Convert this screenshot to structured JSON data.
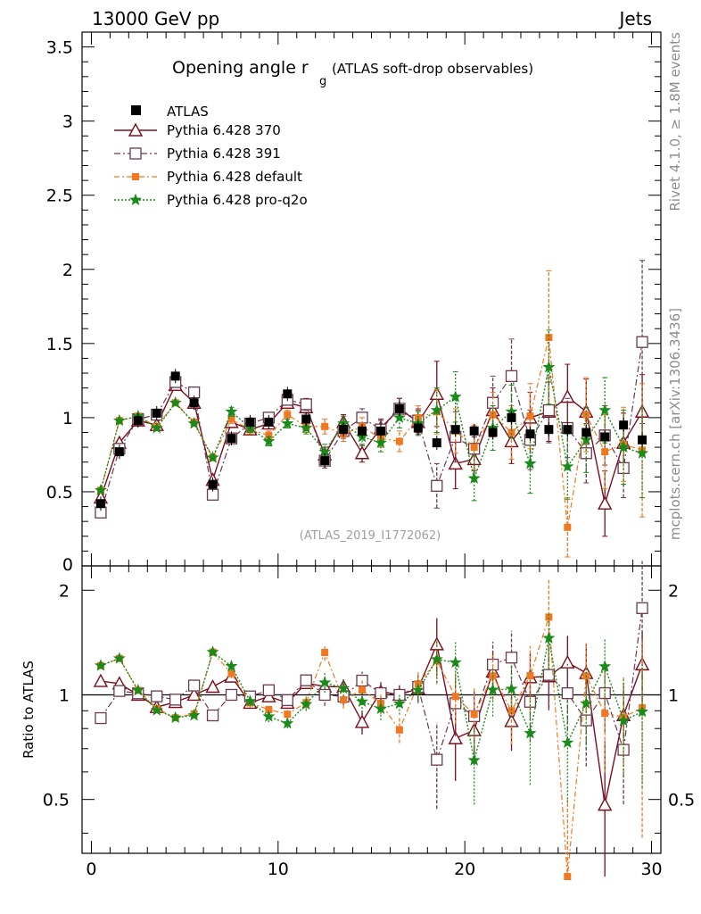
{
  "header": {
    "left": "13000 GeV pp",
    "right": "Jets"
  },
  "side_labels": {
    "rivet": "Rivet 4.1.0, ≥ 1.8M events",
    "mcplots": "mcplots.cern.ch [arXiv:1306.3436]"
  },
  "chart_data": {
    "type": "scatter",
    "title": "Opening angle r",
    "title_subscript": "g",
    "subtitle": "(ATLAS soft-drop observables)",
    "watermark": "(ATLAS_2019_I1772062)",
    "x": [
      0.5,
      1.5,
      2.5,
      3.5,
      4.5,
      5.5,
      6.5,
      7.5,
      8.5,
      9.5,
      10.5,
      11.5,
      12.5,
      13.5,
      14.5,
      15.5,
      16.5,
      17.5,
      18.5,
      19.5,
      20.5,
      21.5,
      22.5,
      23.5,
      24.5,
      25.5,
      26.5,
      27.5,
      28.5,
      29.5
    ],
    "xlim": [
      -0.5,
      30.5
    ],
    "xticks": [
      0,
      10,
      20,
      30
    ],
    "main_ylim": [
      0,
      3.6
    ],
    "main_yticks": [
      "0.5",
      "1",
      "1.5",
      "2",
      "2.5",
      "3",
      "3.5"
    ],
    "ratio_ylabel": "Ratio to ATLAS",
    "ratio_ylim": [
      0.35,
      2.35
    ],
    "ratio_yticks": [
      "0.5",
      "1",
      "2"
    ],
    "reference": {
      "name": "ATLAS",
      "values": [
        0.42,
        0.77,
        0.98,
        1.03,
        1.28,
        1.1,
        0.55,
        0.86,
        0.97,
        0.97,
        1.16,
        0.99,
        0.71,
        0.92,
        0.91,
        0.91,
        1.06,
        0.93,
        0.83,
        0.92,
        0.91,
        0.9,
        1.0,
        0.89,
        0.92,
        0.92,
        0.9,
        0.87,
        0.95,
        0.85
      ]
    },
    "series": [
      {
        "name": "Pythia 6.428 370",
        "color": "#7b0e1e",
        "values": [
          0.46,
          0.83,
          0.98,
          0.95,
          1.22,
          1.1,
          0.58,
          0.97,
          0.92,
          0.96,
          1.1,
          1.07,
          0.75,
          0.97,
          0.76,
          0.93,
          1.06,
          0.97,
          1.16,
          0.69,
          0.72,
          1.05,
          0.84,
          1.0,
          1.04,
          1.14,
          1.04,
          0.42,
          0.83,
          1.04
        ],
        "errors": [
          0.02,
          0.02,
          0.02,
          0.02,
          0.02,
          0.02,
          0.02,
          0.03,
          0.03,
          0.03,
          0.03,
          0.04,
          0.05,
          0.05,
          0.06,
          0.06,
          0.07,
          0.08,
          0.22,
          0.17,
          0.15,
          0.15,
          0.15,
          0.17,
          0.2,
          0.22,
          0.22,
          0.22,
          0.2,
          0.25
        ]
      },
      {
        "name": "Pythia 6.428 391",
        "color": "#6b3a4e",
        "values": [
          0.36,
          0.79,
          0.99,
          1.02,
          1.24,
          1.17,
          0.48,
          0.86,
          0.96,
          1.0,
          1.12,
          1.09,
          0.71,
          0.91,
          1.0,
          0.92,
          1.06,
          0.98,
          0.54,
          0.87,
          0.79,
          1.1,
          1.28,
          0.85,
          1.05,
          0.93,
          0.76,
          0.88,
          0.66,
          1.51
        ],
        "errors": [
          0.02,
          0.02,
          0.02,
          0.02,
          0.02,
          0.02,
          0.02,
          0.03,
          0.03,
          0.03,
          0.03,
          0.04,
          0.05,
          0.05,
          0.06,
          0.06,
          0.07,
          0.08,
          0.15,
          0.17,
          0.15,
          0.18,
          0.25,
          0.2,
          0.22,
          0.2,
          0.2,
          0.2,
          0.2,
          0.55
        ]
      },
      {
        "name": "Pythia 6.428 default",
        "color": "#f07820",
        "values": [
          0.51,
          0.98,
          1.01,
          0.94,
          1.1,
          0.97,
          0.73,
          0.99,
          0.92,
          0.88,
          1.02,
          0.94,
          0.94,
          0.89,
          0.94,
          0.86,
          0.84,
          1.0,
          1.04,
          0.91,
          0.8,
          1.02,
          0.9,
          1.01,
          1.54,
          0.26,
          1.02,
          0.77,
          0.82,
          0.78
        ],
        "errors": [
          0.02,
          0.02,
          0.02,
          0.02,
          0.02,
          0.02,
          0.02,
          0.03,
          0.03,
          0.03,
          0.03,
          0.04,
          0.05,
          0.05,
          0.06,
          0.06,
          0.07,
          0.08,
          0.15,
          0.15,
          0.15,
          0.15,
          0.18,
          0.22,
          0.45,
          0.2,
          0.25,
          0.25,
          0.25,
          0.45
        ]
      },
      {
        "name": "Pythia 6.428 pro-q2o",
        "color": "#1a8a1a",
        "values": [
          0.51,
          0.98,
          1.01,
          0.93,
          1.1,
          0.96,
          0.73,
          1.04,
          0.93,
          0.84,
          0.96,
          0.93,
          0.77,
          0.96,
          0.87,
          0.83,
          1.0,
          0.96,
          1.05,
          1.14,
          0.59,
          0.93,
          1.04,
          0.69,
          1.34,
          0.67,
          0.85,
          1.05,
          0.8,
          0.76
        ],
        "errors": [
          0.02,
          0.02,
          0.02,
          0.02,
          0.02,
          0.02,
          0.02,
          0.03,
          0.03,
          0.03,
          0.03,
          0.04,
          0.05,
          0.05,
          0.06,
          0.06,
          0.07,
          0.08,
          0.15,
          0.17,
          0.15,
          0.15,
          0.18,
          0.2,
          0.25,
          0.22,
          0.22,
          0.22,
          0.25,
          0.3
        ]
      }
    ]
  }
}
